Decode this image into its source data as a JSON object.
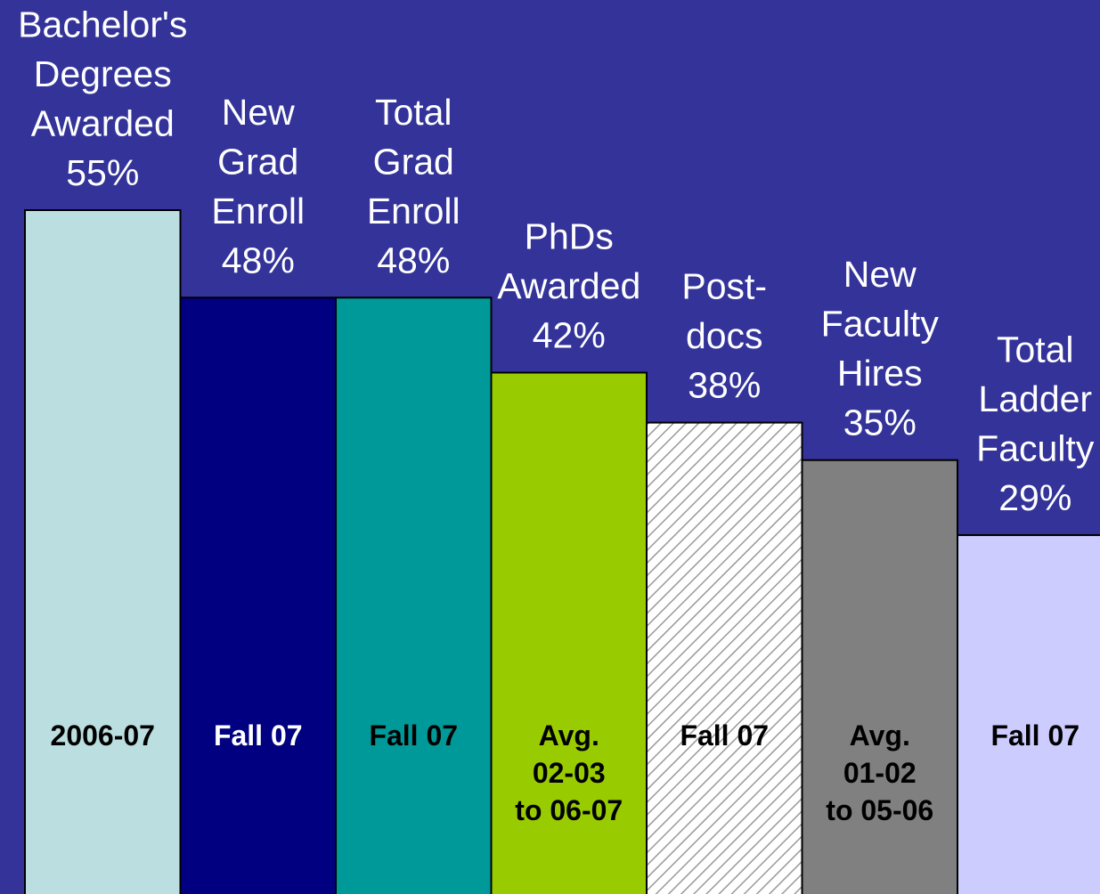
{
  "chart_data": {
    "type": "bar",
    "categories": [
      "Bachelor's\nDegrees\nAwarded",
      "New\nGrad\nEnroll",
      "Total\nGrad\nEnroll",
      "PhDs\nAwarded",
      "Post-\ndocs",
      "New\nFaculty\nHires",
      "Total\nLadder\nFaculty"
    ],
    "values": [
      55,
      48,
      48,
      42,
      38,
      35,
      29
    ],
    "value_labels": [
      "55%",
      "48%",
      "48%",
      "42%",
      "38%",
      "35%",
      "29%"
    ],
    "periods": [
      "2006-07",
      "Fall 07",
      "Fall 07",
      "Avg.\n02-03\nto 06-07",
      "Fall 07",
      "Avg.\n01-02\nto 05-06",
      "Fall 07"
    ],
    "colors": [
      "#bbdfe0",
      "#000080",
      "#009999",
      "#99cc00",
      "#ffffff",
      "#808080",
      "#ccccff"
    ],
    "period_text_colors": [
      "#000000",
      "#ffffff",
      "#000000",
      "#000000",
      "#000000",
      "#000000",
      "#000000"
    ],
    "hatched_bars": [
      4
    ],
    "background": "#333399",
    "ylim": [
      0,
      55
    ]
  }
}
